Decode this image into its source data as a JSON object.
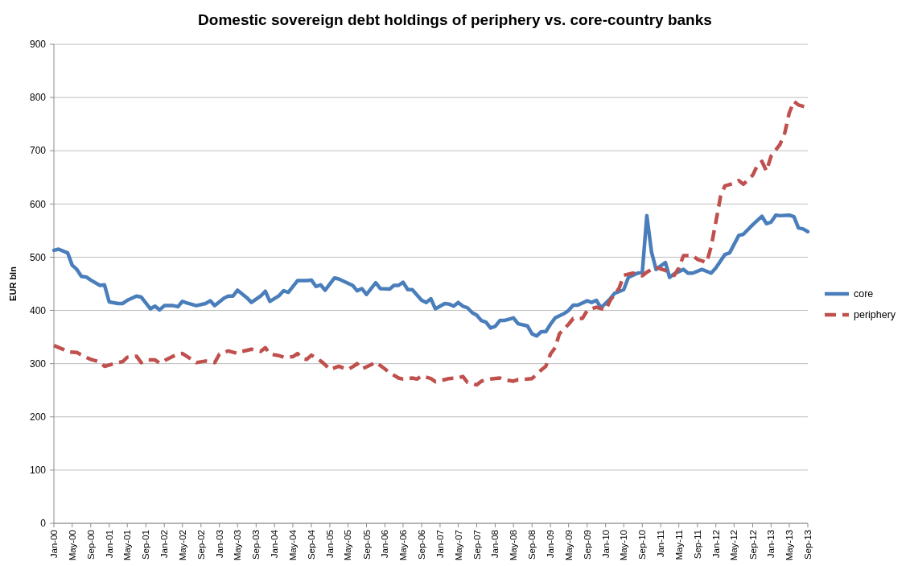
{
  "chart_data": {
    "type": "line",
    "title": "Domestic sovereign debt holdings of periphery vs. core-country banks",
    "ylabel": "EUR bln",
    "xlim": [
      "2000-01",
      "2013-09"
    ],
    "xticks": [
      {
        "value": "2000-01",
        "label": "Jan-00"
      },
      {
        "value": "2000-05",
        "label": "May-00"
      },
      {
        "value": "2000-09",
        "label": "Sep-00"
      },
      {
        "value": "2001-01",
        "label": "Jan-01"
      },
      {
        "value": "2001-05",
        "label": "May-01"
      },
      {
        "value": "2001-09",
        "label": "Sep-01"
      },
      {
        "value": "2002-01",
        "label": "Jan-02"
      },
      {
        "value": "2002-05",
        "label": "May-02"
      },
      {
        "value": "2002-09",
        "label": "Sep-02"
      },
      {
        "value": "2003-01",
        "label": "Jan-03"
      },
      {
        "value": "2003-05",
        "label": "May-03"
      },
      {
        "value": "2003-09",
        "label": "Sep-03"
      },
      {
        "value": "2004-01",
        "label": "Jan-04"
      },
      {
        "value": "2004-05",
        "label": "May-04"
      },
      {
        "value": "2004-09",
        "label": "Sep-04"
      },
      {
        "value": "2005-01",
        "label": "Jan-05"
      },
      {
        "value": "2005-05",
        "label": "May-05"
      },
      {
        "value": "2005-09",
        "label": "Sep-05"
      },
      {
        "value": "2006-01",
        "label": "Jan-06"
      },
      {
        "value": "2006-05",
        "label": "May-06"
      },
      {
        "value": "2006-09",
        "label": "Sep-06"
      },
      {
        "value": "2007-01",
        "label": "Jan-07"
      },
      {
        "value": "2007-05",
        "label": "May-07"
      },
      {
        "value": "2007-09",
        "label": "Sep-07"
      },
      {
        "value": "2008-01",
        "label": "Jan-08"
      },
      {
        "value": "2008-05",
        "label": "May-08"
      },
      {
        "value": "2008-09",
        "label": "Sep-08"
      },
      {
        "value": "2009-01",
        "label": "Jan-09"
      },
      {
        "value": "2009-05",
        "label": "May-09"
      },
      {
        "value": "2009-09",
        "label": "Sep-09"
      },
      {
        "value": "2010-01",
        "label": "Jan-10"
      },
      {
        "value": "2010-05",
        "label": "May-10"
      },
      {
        "value": "2010-09",
        "label": "Sep-10"
      },
      {
        "value": "2011-01",
        "label": "Jan-11"
      },
      {
        "value": "2011-05",
        "label": "May-11"
      },
      {
        "value": "2011-09",
        "label": "Sep-11"
      },
      {
        "value": "2012-01",
        "label": "Jan-12"
      },
      {
        "value": "2012-05",
        "label": "May-12"
      },
      {
        "value": "2012-09",
        "label": "Sep-12"
      },
      {
        "value": "2013-01",
        "label": "Jan-13"
      },
      {
        "value": "2013-05",
        "label": "May-13"
      },
      {
        "value": "2013-09",
        "label": "Sep-13"
      }
    ],
    "ylim": [
      0,
      900
    ],
    "yticks": [
      0,
      100,
      200,
      300,
      400,
      500,
      600,
      700,
      800,
      900
    ],
    "grid": "y",
    "legend": "right",
    "series": [
      {
        "name": "core",
        "color": "#4a7ebb",
        "line_style": "solid",
        "x": [
          "2000-01",
          "2000-02",
          "2000-04",
          "2000-05",
          "2000-06",
          "2000-07",
          "2000-08",
          "2000-09",
          "2000-11",
          "2000-12",
          "2001-01",
          "2001-03",
          "2001-04",
          "2001-05",
          "2001-07",
          "2001-08",
          "2001-09",
          "2001-10",
          "2001-11",
          "2001-12",
          "2002-01",
          "2002-03",
          "2002-04",
          "2002-05",
          "2002-06",
          "2002-08",
          "2002-10",
          "2002-11",
          "2002-12",
          "2003-02",
          "2003-03",
          "2003-04",
          "2003-05",
          "2003-07",
          "2003-08",
          "2003-10",
          "2003-11",
          "2003-12",
          "2004-02",
          "2004-03",
          "2004-04",
          "2004-06",
          "2004-08",
          "2004-09",
          "2004-10",
          "2004-11",
          "2004-12",
          "2005-02",
          "2005-03",
          "2005-06",
          "2005-07",
          "2005-08",
          "2005-09",
          "2005-11",
          "2005-12",
          "2006-02",
          "2006-03",
          "2006-04",
          "2006-05",
          "2006-06",
          "2006-07",
          "2006-09",
          "2006-10",
          "2006-11",
          "2006-12",
          "2007-02",
          "2007-03",
          "2007-04",
          "2007-05",
          "2007-06",
          "2007-07",
          "2007-08",
          "2007-09",
          "2007-10",
          "2007-11",
          "2007-12",
          "2008-01",
          "2008-02",
          "2008-03",
          "2008-05",
          "2008-06",
          "2008-08",
          "2008-09",
          "2008-10",
          "2008-11",
          "2008-12",
          "2009-01",
          "2009-02",
          "2009-04",
          "2009-05",
          "2009-06",
          "2009-07",
          "2009-09",
          "2009-10",
          "2009-11",
          "2009-12",
          "2010-02",
          "2010-03",
          "2010-05",
          "2010-06",
          "2010-08",
          "2010-09",
          "2010-10",
          "2010-11",
          "2010-12",
          "2011-02",
          "2011-03",
          "2011-04",
          "2011-06",
          "2011-07",
          "2011-08",
          "2011-10",
          "2011-12",
          "2012-01",
          "2012-03",
          "2012-04",
          "2012-06",
          "2012-07",
          "2012-09",
          "2012-11",
          "2012-12",
          "2013-01",
          "2013-02",
          "2013-03",
          "2013-05",
          "2013-06",
          "2013-07",
          "2013-08",
          "2013-09"
        ],
        "values": [
          513,
          515,
          508,
          485,
          477,
          464,
          463,
          457,
          447,
          448,
          416,
          413,
          413,
          419,
          427,
          425,
          414,
          403,
          408,
          401,
          409,
          409,
          407,
          417,
          414,
          409,
          413,
          418,
          409,
          423,
          427,
          427,
          438,
          424,
          415,
          427,
          436,
          417,
          428,
          437,
          434,
          456,
          456,
          457,
          445,
          448,
          438,
          461,
          459,
          447,
          437,
          441,
          430,
          452,
          441,
          440,
          447,
          447,
          453,
          439,
          439,
          419,
          415,
          422,
          403,
          413,
          412,
          408,
          415,
          408,
          405,
          396,
          391,
          381,
          378,
          367,
          370,
          381,
          381,
          386,
          375,
          371,
          356,
          352,
          360,
          360,
          374,
          386,
          394,
          400,
          410,
          410,
          418,
          415,
          419,
          405,
          422,
          432,
          439,
          462,
          470,
          471,
          578,
          510,
          477,
          490,
          462,
          469,
          477,
          470,
          470,
          477,
          470,
          480,
          505,
          508,
          541,
          543,
          561,
          577,
          563,
          566,
          579,
          578,
          579,
          576,
          555,
          553,
          548
        ]
      },
      {
        "name": "periphery",
        "color": "#c0504d",
        "line_style": "dashed",
        "x": [
          "2000-01",
          "2000-03",
          "2000-04",
          "2000-06",
          "2000-08",
          "2000-09",
          "2000-11",
          "2000-12",
          "2001-02",
          "2001-04",
          "2001-05",
          "2001-07",
          "2001-08",
          "2001-09",
          "2001-11",
          "2001-12",
          "2002-02",
          "2002-03",
          "2002-04",
          "2002-05",
          "2002-07",
          "2002-08",
          "2002-10",
          "2002-12",
          "2003-01",
          "2003-03",
          "2003-05",
          "2003-06",
          "2003-08",
          "2003-10",
          "2003-11",
          "2003-12",
          "2004-02",
          "2004-03",
          "2004-05",
          "2004-06",
          "2004-07",
          "2004-08",
          "2004-09",
          "2004-11",
          "2004-12",
          "2005-01",
          "2005-03",
          "2005-05",
          "2005-06",
          "2005-07",
          "2005-08",
          "2005-10",
          "2005-11",
          "2006-01",
          "2006-02",
          "2006-04",
          "2006-05",
          "2006-07",
          "2006-08",
          "2006-09",
          "2006-11",
          "2006-12",
          "2007-02",
          "2007-03",
          "2007-05",
          "2007-06",
          "2007-07",
          "2007-09",
          "2007-10",
          "2007-12",
          "2008-02",
          "2008-03",
          "2008-05",
          "2008-06",
          "2008-08",
          "2008-09",
          "2008-11",
          "2008-12",
          "2009-01",
          "2009-02",
          "2009-03",
          "2009-05",
          "2009-06",
          "2009-08",
          "2009-09",
          "2009-11",
          "2010-01",
          "2010-02",
          "2010-04",
          "2010-05",
          "2010-07",
          "2010-09",
          "2010-10",
          "2010-12",
          "2011-02",
          "2011-04",
          "2011-05",
          "2011-06",
          "2011-08",
          "2011-09",
          "2011-11",
          "2011-12",
          "2012-01",
          "2012-02",
          "2012-03",
          "2012-05",
          "2012-06",
          "2012-07",
          "2012-09",
          "2012-10",
          "2012-11",
          "2012-12",
          "2013-01",
          "2013-03",
          "2013-04",
          "2013-05",
          "2013-06",
          "2013-07",
          "2013-09"
        ],
        "values": [
          334,
          327,
          322,
          321,
          312,
          308,
          303,
          295,
          300,
          304,
          312,
          314,
          302,
          307,
          307,
          301,
          310,
          314,
          318,
          319,
          308,
          302,
          305,
          302,
          318,
          324,
          319,
          323,
          327,
          323,
          330,
          318,
          315,
          312,
          313,
          319,
          310,
          308,
          316,
          305,
          298,
          289,
          295,
          289,
          294,
          300,
          290,
          298,
          303,
          290,
          283,
          273,
          271,
          273,
          271,
          277,
          272,
          266,
          270,
          272,
          273,
          276,
          265,
          260,
          267,
          271,
          273,
          270,
          267,
          270,
          271,
          272,
          288,
          295,
          318,
          330,
          356,
          374,
          385,
          385,
          400,
          406,
          401,
          419,
          442,
          466,
          470,
          465,
          472,
          481,
          475,
          466,
          480,
          503,
          503,
          496,
          490,
          520,
          566,
          614,
          634,
          639,
          644,
          637,
          654,
          672,
          680,
          662,
          690,
          712,
          733,
          771,
          793,
          786,
          781
        ]
      }
    ]
  }
}
